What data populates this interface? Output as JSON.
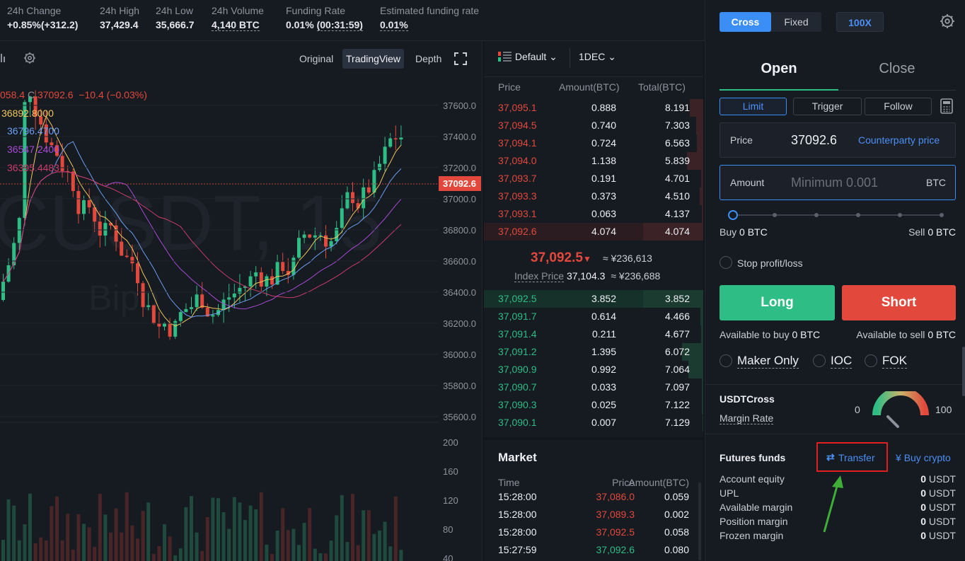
{
  "stats": {
    "change": {
      "label": "24h Change",
      "value": "+0.85%(+312.2)"
    },
    "high": {
      "label": "24h High",
      "value": "37,429.4"
    },
    "low": {
      "label": "24h Low",
      "value": "35,666.7"
    },
    "volume": {
      "label": "24h Volume",
      "value": "4,140 BTC"
    },
    "funding": {
      "label": "Funding Rate",
      "value": "0.01%",
      "countdown": "(00:31:59)"
    },
    "est_funding": {
      "label": "Estimated funding rate",
      "value": "0.01%"
    }
  },
  "chart": {
    "tabs": [
      "Original",
      "TradingView",
      "Depth"
    ],
    "active_tab": "TradingView",
    "ohlc_partial": "058.4",
    "close_label": "C",
    "close_value": "37092.6",
    "change": "−10.4 (−0.03%)",
    "ma_values": [
      "36892.8000",
      "36796.4700",
      "36547.2400",
      "36395.4483"
    ],
    "ma_colors": [
      "#f0c75e",
      "#6c9ff2",
      "#a84ad6",
      "#c93c6a"
    ],
    "watermark": "CUSDT, 15",
    "watermark2": "Bipo",
    "price_ticks": [
      "37600.0",
      "37400.0",
      "37200.0",
      "37000.0",
      "36800.0",
      "36600.0",
      "36400.0",
      "36200.0",
      "36000.0",
      "35800.0",
      "35600.0"
    ],
    "current_price_tag": "37092.6",
    "volume_ticks": [
      "200",
      "160",
      "120",
      "80",
      "40"
    ]
  },
  "orderbook": {
    "view": "Default",
    "precision": "1DEC",
    "headers": {
      "price": "Price",
      "amount": "Amount(BTC)",
      "total": "Total(BTC)"
    },
    "asks": [
      {
        "price": "37,095.1",
        "amount": "0.888",
        "total": "8.191",
        "depth": 0.22
      },
      {
        "price": "37,094.5",
        "amount": "0.740",
        "total": "7.303",
        "depth": 0.12
      },
      {
        "price": "37,094.1",
        "amount": "0.724",
        "total": "6.563",
        "depth": 0.1
      },
      {
        "price": "37,094.0",
        "amount": "1.138",
        "total": "5.839",
        "depth": 0.27
      },
      {
        "price": "37,093.7",
        "amount": "0.191",
        "total": "4.701",
        "depth": 0.04
      },
      {
        "price": "37,093.3",
        "amount": "0.373",
        "total": "4.510",
        "depth": 0.06
      },
      {
        "price": "37,093.1",
        "amount": "0.063",
        "total": "4.137",
        "depth": 0.02
      },
      {
        "price": "37,092.6",
        "amount": "4.074",
        "total": "4.074",
        "depth": 1.0
      }
    ],
    "last_price": "37,092.5",
    "last_price_cny": "≈ ¥236,613",
    "index_label": "Index Price",
    "index_value": "37,104.3",
    "index_cny": "≈ ¥236,688",
    "bids": [
      {
        "price": "37,092.5",
        "amount": "3.852",
        "total": "3.852",
        "depth": 1.0
      },
      {
        "price": "37,091.7",
        "amount": "0.614",
        "total": "4.466",
        "depth": 0.05
      },
      {
        "price": "37,091.4",
        "amount": "0.211",
        "total": "4.677",
        "depth": 0.04
      },
      {
        "price": "37,091.2",
        "amount": "1.395",
        "total": "6.072",
        "depth": 0.35
      },
      {
        "price": "37,090.9",
        "amount": "0.992",
        "total": "7.064",
        "depth": 0.25
      },
      {
        "price": "37,090.7",
        "amount": "0.033",
        "total": "7.097",
        "depth": 0.02
      },
      {
        "price": "37,090.3",
        "amount": "0.025",
        "total": "7.122",
        "depth": 0.02
      },
      {
        "price": "37,090.1",
        "amount": "0.007",
        "total": "7.129",
        "depth": 0.01
      }
    ]
  },
  "market": {
    "title": "Market",
    "headers": {
      "time": "Time",
      "price": "Price",
      "amount": "Amount(BTC)"
    },
    "trades": [
      {
        "time": "15:28:00",
        "price": "37,086.0",
        "amount": "0.059",
        "side": "sell"
      },
      {
        "time": "15:28:00",
        "price": "37,089.3",
        "amount": "0.002",
        "side": "sell"
      },
      {
        "time": "15:28:00",
        "price": "37,092.5",
        "amount": "0.058",
        "side": "sell"
      },
      {
        "time": "15:27:59",
        "price": "37,092.6",
        "amount": "0.080",
        "side": "buy"
      }
    ]
  },
  "panel": {
    "margin_modes": [
      "Cross",
      "Fixed"
    ],
    "leverage": "100X",
    "tabs": {
      "open": "Open",
      "close": "Close"
    },
    "order_types": [
      "Limit",
      "Trigger",
      "Follow"
    ],
    "price_label": "Price",
    "price_value": "37092.6",
    "counterparty": "Counterparty price",
    "amount_label": "Amount",
    "amount_placeholder": "Minimum 0.001",
    "amount_unit": "BTC",
    "buy_label": "Buy",
    "buy_value": "0 BTC",
    "sell_label": "Sell",
    "sell_value": "0 BTC",
    "stop_label": "Stop profit/loss",
    "long": "Long",
    "short": "Short",
    "avail_buy_label": "Available to buy",
    "avail_buy_value": "0 BTC",
    "avail_sell_label": "Available to sell",
    "avail_sell_value": "0 BTC",
    "options": [
      "Maker Only",
      "IOC",
      "FOK"
    ],
    "account_type": "USDTCross",
    "margin_rate_label": "Margin Rate",
    "gauge_min": "0",
    "gauge_max": "100",
    "funds_title": "Futures funds",
    "transfer": "Transfer",
    "buy_crypto": "Buy crypto",
    "funds": [
      {
        "label": "Account equity",
        "value": "0",
        "unit": "USDT"
      },
      {
        "label": "UPL",
        "value": "0",
        "unit": "USDT"
      },
      {
        "label": "Available margin",
        "value": "0",
        "unit": "USDT"
      },
      {
        "label": "Position margin",
        "value": "0",
        "unit": "USDT"
      },
      {
        "label": "Frozen margin",
        "value": "0",
        "unit": "USDT"
      }
    ]
  },
  "colors": {
    "green": "#2ebd85",
    "red": "#e2493c",
    "accent": "#3a8ef6"
  }
}
